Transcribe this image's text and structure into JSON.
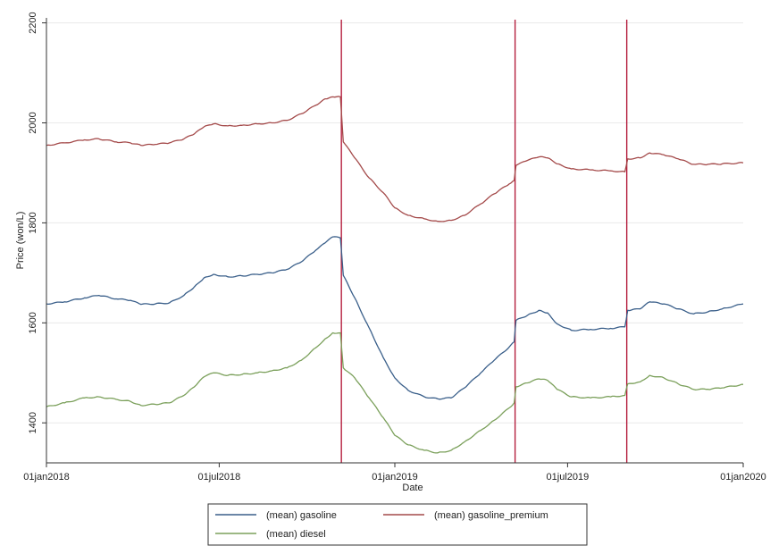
{
  "chart_data": {
    "type": "line",
    "xlabel": "Date",
    "ylabel": "Price (won/L)",
    "xlim": [
      "2018-01-01",
      "2020-01-01"
    ],
    "ylim": [
      1320,
      2210
    ],
    "y_ticks": [
      1400,
      1600,
      1800,
      2000,
      2200
    ],
    "x_ticks": [
      {
        "date": "2018-01-01",
        "label": "01jan2018"
      },
      {
        "date": "2018-07-01",
        "label": "01jul2018"
      },
      {
        "date": "2019-01-01",
        "label": "01jan2019"
      },
      {
        "date": "2019-07-01",
        "label": "01jul2019"
      },
      {
        "date": "2020-01-01",
        "label": "01jan2020"
      }
    ],
    "grid": "horizontal",
    "legend_position": "bottom",
    "vertical_lines": {
      "color": "#b5203f",
      "dates": [
        "2018-11-06",
        "2019-05-07",
        "2019-09-01"
      ]
    },
    "series": [
      {
        "name": "(mean) gasoline",
        "color": "#3a5f8a",
        "points": [
          [
            "2018-01-01",
            1638
          ],
          [
            "2018-01-20",
            1642
          ],
          [
            "2018-02-10",
            1650
          ],
          [
            "2018-02-25",
            1655
          ],
          [
            "2018-03-15",
            1648
          ],
          [
            "2018-03-30",
            1645
          ],
          [
            "2018-04-10",
            1637
          ],
          [
            "2018-04-25",
            1638
          ],
          [
            "2018-05-10",
            1640
          ],
          [
            "2018-05-25",
            1655
          ],
          [
            "2018-06-05",
            1672
          ],
          [
            "2018-06-15",
            1690
          ],
          [
            "2018-06-25",
            1697
          ],
          [
            "2018-07-10",
            1692
          ],
          [
            "2018-07-25",
            1694
          ],
          [
            "2018-08-10",
            1697
          ],
          [
            "2018-08-25",
            1700
          ],
          [
            "2018-09-10",
            1707
          ],
          [
            "2018-09-25",
            1722
          ],
          [
            "2018-10-10",
            1745
          ],
          [
            "2018-10-20",
            1760
          ],
          [
            "2018-10-28",
            1772
          ],
          [
            "2018-11-05",
            1770
          ],
          [
            "2018-11-08",
            1695
          ],
          [
            "2018-11-20",
            1650
          ],
          [
            "2018-12-05",
            1590
          ],
          [
            "2018-12-20",
            1530
          ],
          [
            "2019-01-01",
            1490
          ],
          [
            "2019-01-15",
            1465
          ],
          [
            "2019-02-01",
            1452
          ],
          [
            "2019-02-15",
            1448
          ],
          [
            "2019-03-01",
            1450
          ],
          [
            "2019-03-15",
            1470
          ],
          [
            "2019-04-01",
            1500
          ],
          [
            "2019-04-15",
            1525
          ],
          [
            "2019-05-01",
            1552
          ],
          [
            "2019-05-06",
            1562
          ],
          [
            "2019-05-08",
            1605
          ],
          [
            "2019-05-20",
            1615
          ],
          [
            "2019-06-01",
            1625
          ],
          [
            "2019-06-10",
            1620
          ],
          [
            "2019-06-20",
            1598
          ],
          [
            "2019-07-05",
            1585
          ],
          [
            "2019-07-25",
            1587
          ],
          [
            "2019-08-15",
            1589
          ],
          [
            "2019-08-30",
            1592
          ],
          [
            "2019-09-02",
            1625
          ],
          [
            "2019-09-15",
            1628
          ],
          [
            "2019-09-25",
            1642
          ],
          [
            "2019-10-10",
            1638
          ],
          [
            "2019-10-25",
            1628
          ],
          [
            "2019-11-10",
            1618
          ],
          [
            "2019-11-25",
            1622
          ],
          [
            "2019-12-10",
            1628
          ],
          [
            "2020-01-01",
            1638
          ]
        ]
      },
      {
        "name": "(mean) gasoline_premium",
        "color": "#a44a4a",
        "points": [
          [
            "2018-01-01",
            1955
          ],
          [
            "2018-01-20",
            1960
          ],
          [
            "2018-02-10",
            1966
          ],
          [
            "2018-02-25",
            1968
          ],
          [
            "2018-03-15",
            1962
          ],
          [
            "2018-03-30",
            1960
          ],
          [
            "2018-04-10",
            1955
          ],
          [
            "2018-04-25",
            1957
          ],
          [
            "2018-05-10",
            1960
          ],
          [
            "2018-05-25",
            1968
          ],
          [
            "2018-06-05",
            1978
          ],
          [
            "2018-06-15",
            1992
          ],
          [
            "2018-06-25",
            1998
          ],
          [
            "2018-07-10",
            1994
          ],
          [
            "2018-07-25",
            1995
          ],
          [
            "2018-08-10",
            1998
          ],
          [
            "2018-08-25",
            2000
          ],
          [
            "2018-09-10",
            2005
          ],
          [
            "2018-09-25",
            2018
          ],
          [
            "2018-10-10",
            2035
          ],
          [
            "2018-10-20",
            2048
          ],
          [
            "2018-10-28",
            2052
          ],
          [
            "2018-11-05",
            2052
          ],
          [
            "2018-11-08",
            1962
          ],
          [
            "2018-11-20",
            1930
          ],
          [
            "2018-12-05",
            1890
          ],
          [
            "2018-12-20",
            1860
          ],
          [
            "2019-01-01",
            1830
          ],
          [
            "2019-01-15",
            1815
          ],
          [
            "2019-02-01",
            1808
          ],
          [
            "2019-02-15",
            1803
          ],
          [
            "2019-03-01",
            1805
          ],
          [
            "2019-03-15",
            1815
          ],
          [
            "2019-04-01",
            1838
          ],
          [
            "2019-04-15",
            1858
          ],
          [
            "2019-05-01",
            1878
          ],
          [
            "2019-05-06",
            1885
          ],
          [
            "2019-05-08",
            1915
          ],
          [
            "2019-05-20",
            1925
          ],
          [
            "2019-06-01",
            1932
          ],
          [
            "2019-06-10",
            1930
          ],
          [
            "2019-06-20",
            1918
          ],
          [
            "2019-07-05",
            1908
          ],
          [
            "2019-07-25",
            1906
          ],
          [
            "2019-08-15",
            1904
          ],
          [
            "2019-08-30",
            1902
          ],
          [
            "2019-09-02",
            1928
          ],
          [
            "2019-09-15",
            1930
          ],
          [
            "2019-09-25",
            1940
          ],
          [
            "2019-10-10",
            1936
          ],
          [
            "2019-10-25",
            1928
          ],
          [
            "2019-11-10",
            1917
          ],
          [
            "2019-11-25",
            1917
          ],
          [
            "2019-12-10",
            1918
          ],
          [
            "2020-01-01",
            1920
          ]
        ]
      },
      {
        "name": "(mean) diesel",
        "color": "#7ba05b",
        "points": [
          [
            "2018-01-01",
            1432
          ],
          [
            "2018-01-20",
            1440
          ],
          [
            "2018-02-10",
            1450
          ],
          [
            "2018-02-25",
            1452
          ],
          [
            "2018-03-15",
            1447
          ],
          [
            "2018-03-30",
            1443
          ],
          [
            "2018-04-10",
            1435
          ],
          [
            "2018-04-25",
            1437
          ],
          [
            "2018-05-10",
            1440
          ],
          [
            "2018-05-25",
            1455
          ],
          [
            "2018-06-05",
            1472
          ],
          [
            "2018-06-15",
            1492
          ],
          [
            "2018-06-25",
            1500
          ],
          [
            "2018-07-10",
            1495
          ],
          [
            "2018-07-25",
            1497
          ],
          [
            "2018-08-10",
            1500
          ],
          [
            "2018-08-25",
            1504
          ],
          [
            "2018-09-10",
            1510
          ],
          [
            "2018-09-25",
            1525
          ],
          [
            "2018-10-10",
            1550
          ],
          [
            "2018-10-20",
            1568
          ],
          [
            "2018-10-28",
            1580
          ],
          [
            "2018-11-05",
            1580
          ],
          [
            "2018-11-08",
            1510
          ],
          [
            "2018-11-20",
            1490
          ],
          [
            "2018-12-05",
            1450
          ],
          [
            "2018-12-20",
            1410
          ],
          [
            "2019-01-01",
            1375
          ],
          [
            "2019-01-15",
            1356
          ],
          [
            "2019-02-01",
            1345
          ],
          [
            "2019-02-15",
            1340
          ],
          [
            "2019-03-01",
            1345
          ],
          [
            "2019-03-15",
            1362
          ],
          [
            "2019-04-01",
            1385
          ],
          [
            "2019-04-15",
            1405
          ],
          [
            "2019-05-01",
            1430
          ],
          [
            "2019-05-06",
            1440
          ],
          [
            "2019-05-08",
            1472
          ],
          [
            "2019-05-20",
            1480
          ],
          [
            "2019-06-01",
            1488
          ],
          [
            "2019-06-10",
            1485
          ],
          [
            "2019-06-20",
            1467
          ],
          [
            "2019-07-05",
            1452
          ],
          [
            "2019-07-25",
            1450
          ],
          [
            "2019-08-15",
            1452
          ],
          [
            "2019-08-30",
            1455
          ],
          [
            "2019-09-02",
            1478
          ],
          [
            "2019-09-15",
            1482
          ],
          [
            "2019-09-25",
            1495
          ],
          [
            "2019-10-10",
            1490
          ],
          [
            "2019-10-25",
            1478
          ],
          [
            "2019-11-10",
            1467
          ],
          [
            "2019-11-25",
            1467
          ],
          [
            "2019-12-10",
            1470
          ],
          [
            "2020-01-01",
            1477
          ]
        ]
      }
    ]
  }
}
